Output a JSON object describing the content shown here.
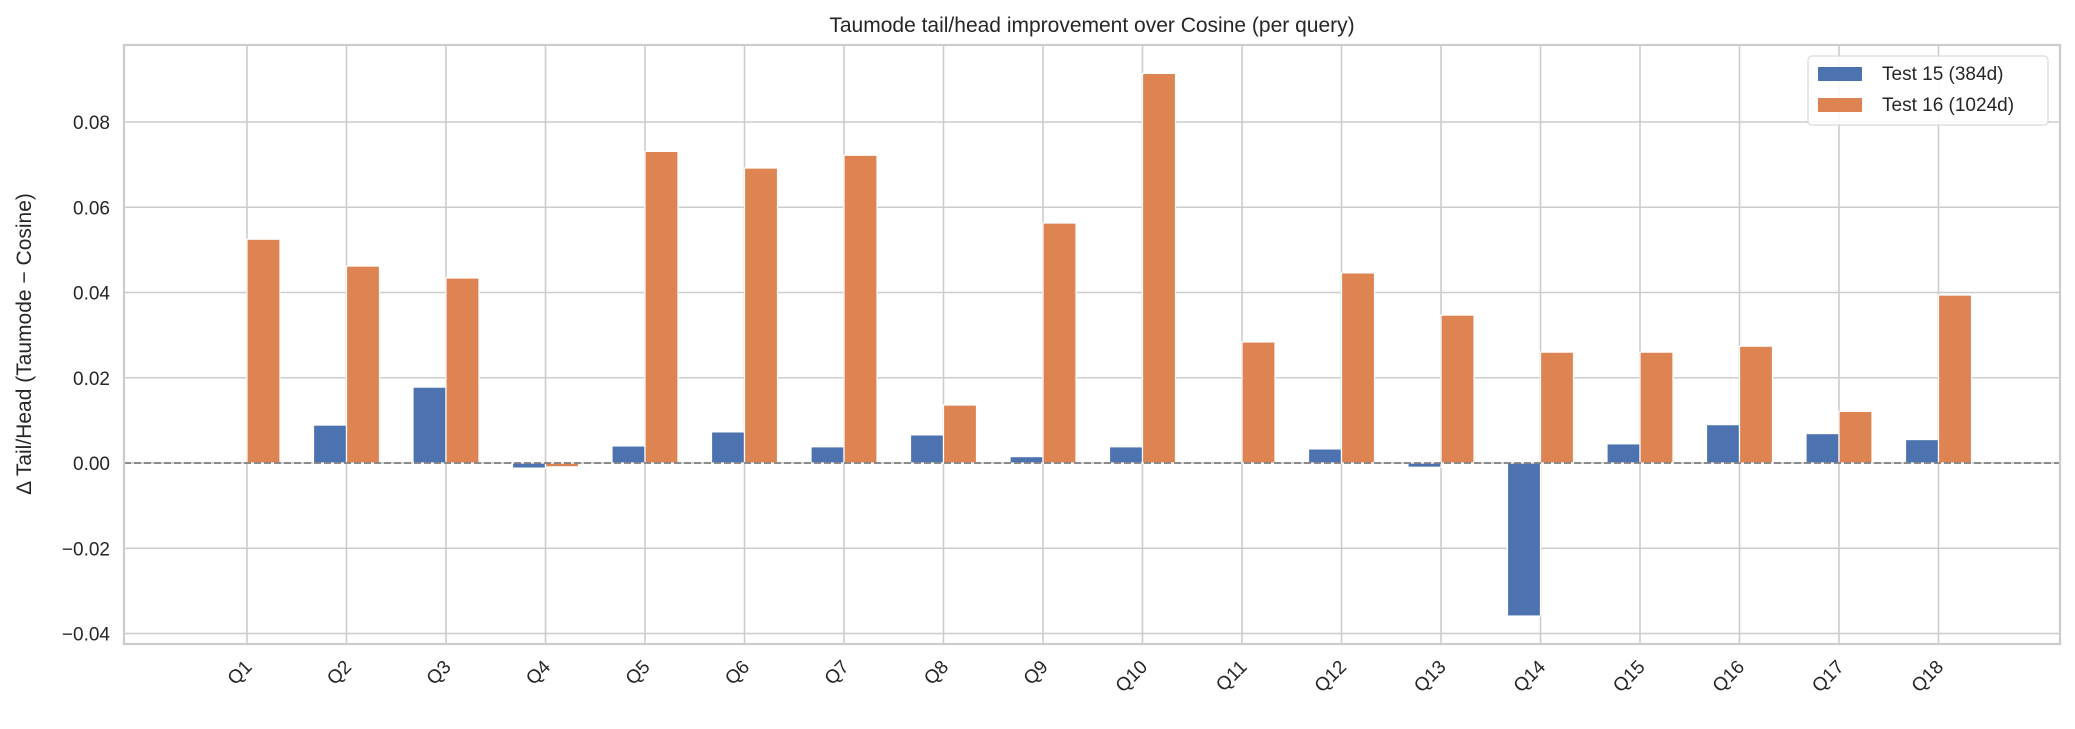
{
  "chart_data": {
    "type": "bar",
    "title": "Taumode tail/head improvement over Cosine (per query)",
    "xlabel": "",
    "ylabel": "Δ Tail/Head (Taumode − Cosine)",
    "categories": [
      "Q1",
      "Q2",
      "Q3",
      "Q4",
      "Q5",
      "Q6",
      "Q7",
      "Q8",
      "Q9",
      "Q10",
      "Q11",
      "Q12",
      "Q13",
      "Q14",
      "Q15",
      "Q16",
      "Q17",
      "Q18"
    ],
    "series": [
      {
        "name": "Test 15 (384d)",
        "color": "#4C72B0",
        "values": [
          0.0,
          0.0089,
          0.0178,
          -0.0012,
          0.004,
          0.0073,
          0.0038,
          0.0066,
          0.0015,
          0.0038,
          0.0,
          0.0033,
          -0.001,
          -0.0359,
          0.0045,
          0.009,
          0.0069,
          0.0055
        ]
      },
      {
        "name": "Test 16 (1024d)",
        "color": "#DD8452",
        "values": [
          0.0525,
          0.0462,
          0.0434,
          -0.0009,
          0.0731,
          0.0692,
          0.0722,
          0.0136,
          0.0563,
          0.0914,
          0.0284,
          0.0446,
          0.0347,
          0.026,
          0.026,
          0.0274,
          0.0121,
          0.0394
        ]
      }
    ],
    "yticks": [
      -0.04,
      -0.02,
      0.0,
      0.02,
      0.04,
      0.06,
      0.08
    ],
    "ytick_labels": [
      "−0.04",
      "−0.02",
      "0.00",
      "0.02",
      "0.04",
      "0.06",
      "0.08"
    ],
    "ylim": [
      -0.0425,
      0.098
    ],
    "reference_line": {
      "y": 0,
      "style": "dashed",
      "color": "#808080"
    },
    "grid": true,
    "legend_position": "upper right",
    "xtick_rotation": 45
  }
}
